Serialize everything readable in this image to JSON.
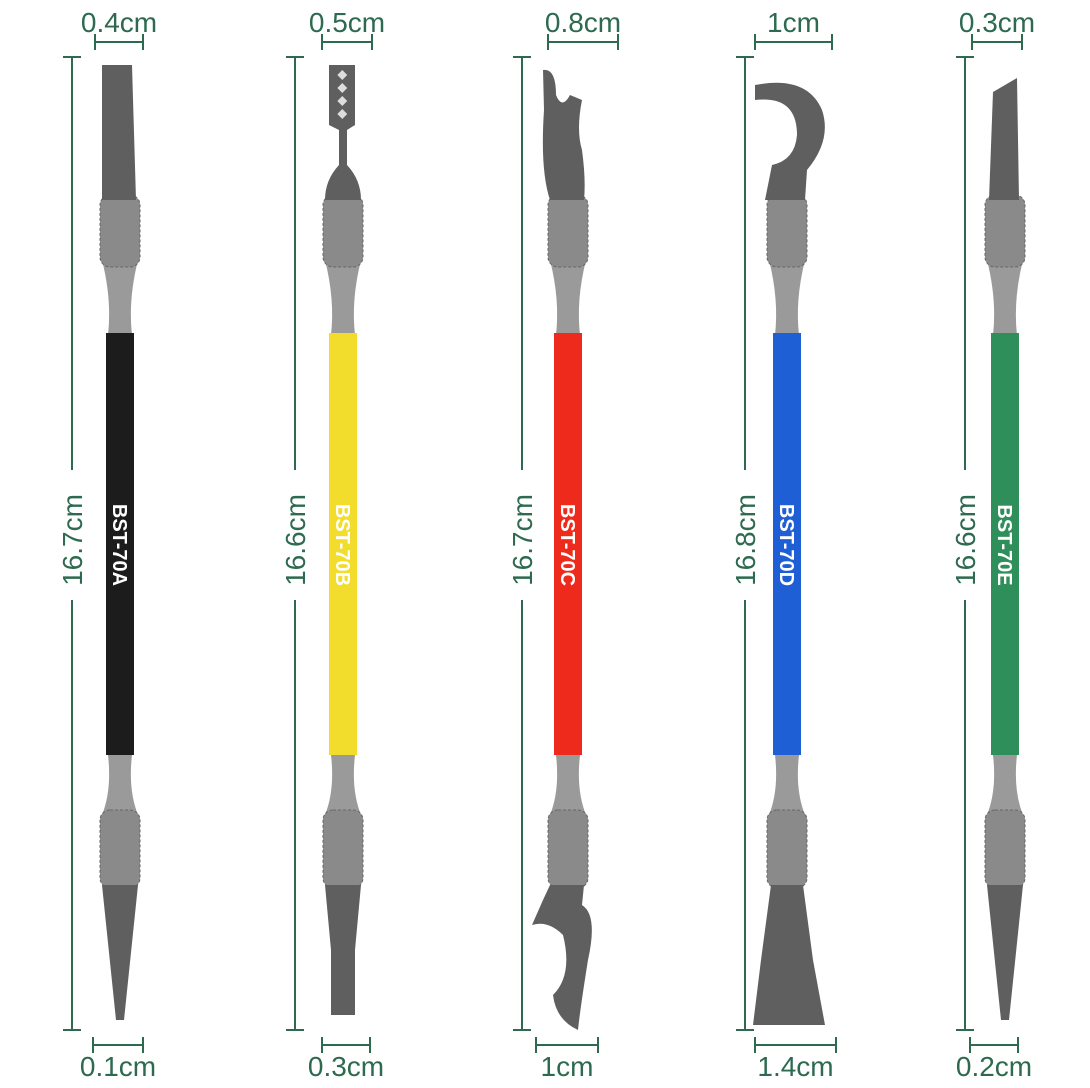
{
  "colors": {
    "dimension": "#2d6a4f",
    "metal": "#5f5f5f",
    "steel": "#9a9a9a"
  },
  "tools": [
    {
      "model": "BST-70A",
      "length": "16.7cm",
      "top_width": "0.4cm",
      "bottom_width": "0.1cm",
      "handle_color": "#1c1c1c",
      "label_color": "#ffffff",
      "top_tip": "flat",
      "bottom_tip": "pointed"
    },
    {
      "model": "BST-70B",
      "length": "16.6cm",
      "top_width": "0.5cm",
      "bottom_width": "0.3cm",
      "handle_color": "#f3dd2c",
      "label_color": "#ffffff",
      "top_tip": "serrated",
      "bottom_tip": "flat"
    },
    {
      "model": "BST-70C",
      "length": "16.7cm",
      "top_width": "0.8cm",
      "bottom_width": "1cm",
      "handle_color": "#ee2a1c",
      "label_color": "#ffffff",
      "top_tip": "hook",
      "bottom_tip": "curved-blade"
    },
    {
      "model": "BST-70D",
      "length": "16.8cm",
      "top_width": "1cm",
      "bottom_width": "1.4cm",
      "handle_color": "#1f5fd6",
      "label_color": "#ffffff",
      "top_tip": "big-hook",
      "bottom_tip": "wide-spatula"
    },
    {
      "model": "BST-70E",
      "length": "16.6cm",
      "top_width": "0.3cm",
      "bottom_width": "0.2cm",
      "handle_color": "#2f8f5a",
      "label_color": "#ffffff",
      "top_tip": "angled",
      "bottom_tip": "pointed"
    }
  ]
}
